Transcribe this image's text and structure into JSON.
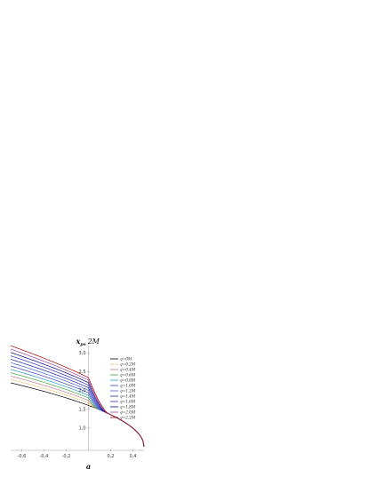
{
  "chart_data": {
    "type": "line",
    "xlabel": "a",
    "ylabel_main": "x",
    "ylabel_sub": "ps",
    "ylabel_suffix": "2M",
    "xlim": [
      -0.7,
      0.5
    ],
    "ylim": [
      0.4,
      3.1
    ],
    "x_ticks": [
      -0.6,
      -0.4,
      -0.2,
      0.2,
      0.4
    ],
    "x_tick_labels": [
      "-0,6",
      "-0,4",
      "-0,2",
      "0,2",
      "0,4"
    ],
    "y_ticks": [
      1.0,
      1.5,
      2.0,
      2.5,
      3.0
    ],
    "y_tick_labels": [
      "1,0",
      "1,5",
      "2,0",
      "2,5",
      "3,0"
    ],
    "legend_position": "top-right",
    "series": [
      {
        "name": "q=0M",
        "color": "#000000",
        "dash": false,
        "y_left": 2.2
      },
      {
        "name": "q=0.2M",
        "color": "#e0a020",
        "dash": true,
        "y_left": 2.29
      },
      {
        "name": "q=0.4M",
        "color": "#c08080",
        "dash": false,
        "y_left": 2.38
      },
      {
        "name": "q=0.6M",
        "color": "#40a040",
        "dash": false,
        "y_left": 2.47
      },
      {
        "name": "q=0.8M",
        "color": "#20a0c0",
        "dash": false,
        "y_left": 2.56
      },
      {
        "name": "q=1.0M",
        "color": "#4040c0",
        "dash": false,
        "y_left": 2.65
      },
      {
        "name": "q=1.2M",
        "color": "#4060e0",
        "dash": false,
        "y_left": 2.74
      },
      {
        "name": "q=1.4M",
        "color": "#2020a0",
        "dash": false,
        "y_left": 2.83
      },
      {
        "name": "q=1.6M",
        "color": "#3030c0",
        "dash": false,
        "y_left": 2.92
      },
      {
        "name": "q=1.8M",
        "color": "#000080",
        "dash": false,
        "y_left": 3.01
      },
      {
        "name": "q=2.0M",
        "color": "#a040a0",
        "dash": false,
        "y_left": 3.1
      },
      {
        "name": "q=2.2M",
        "color": "#a00000",
        "dash": false,
        "y_left": 3.19
      }
    ]
  }
}
